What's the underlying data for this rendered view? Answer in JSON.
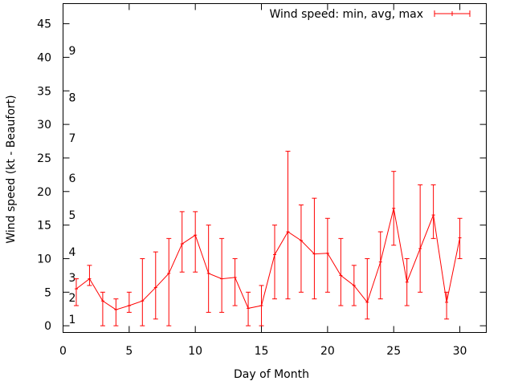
{
  "chart_data": {
    "type": "line",
    "title": "",
    "xlabel": "Day of Month",
    "ylabel": "Wind speed (kt - Beaufort)",
    "xlim": [
      0,
      32
    ],
    "ylim": [
      -1,
      48
    ],
    "x_ticks": [
      0,
      5,
      10,
      15,
      20,
      25,
      30
    ],
    "y_ticks": [
      0,
      5,
      10,
      15,
      20,
      25,
      30,
      35,
      40,
      45
    ],
    "beaufort_labels": [
      {
        "label": "1",
        "value": 1
      },
      {
        "label": "2",
        "value": 4.2
      },
      {
        "label": "3",
        "value": 7.2
      },
      {
        "label": "4",
        "value": 11
      },
      {
        "label": "5",
        "value": 16.5
      },
      {
        "label": "6",
        "value": 22
      },
      {
        "label": "7",
        "value": 28
      },
      {
        "label": "8",
        "value": 34
      },
      {
        "label": "9",
        "value": 41
      }
    ],
    "legend": {
      "position": "top-right",
      "label": "Wind speed: min, avg, max"
    },
    "grid": false,
    "series": [
      {
        "name": "Wind speed: min, avg, max",
        "color": "#ff0000",
        "x": [
          1,
          2,
          3,
          4,
          5,
          6,
          7,
          8,
          9,
          10,
          11,
          12,
          13,
          14,
          15,
          16,
          17,
          18,
          19,
          20,
          21,
          22,
          23,
          24,
          25,
          26,
          27,
          28,
          29,
          30
        ],
        "avg": [
          5.5,
          7,
          3.7,
          2.4,
          3,
          3.7,
          5.7,
          7.8,
          12.2,
          13.5,
          7.8,
          7,
          7.2,
          2.6,
          3,
          10.6,
          14,
          12.7,
          10.7,
          10.8,
          7.5,
          6,
          3.5,
          9.5,
          17.5,
          6.5,
          11.5,
          16.5,
          3.5,
          13.1
        ],
        "min": [
          3,
          6,
          0,
          0,
          2,
          0,
          1,
          0,
          8,
          8,
          2,
          2,
          3,
          0,
          0,
          4,
          4,
          5,
          4,
          5,
          3,
          3,
          1,
          4,
          12,
          3,
          5,
          13,
          1,
          10
        ],
        "max": [
          7,
          9,
          5,
          4,
          5,
          10,
          11,
          13,
          17,
          17,
          15,
          13,
          10,
          5,
          6,
          15,
          26,
          18,
          19,
          16,
          13,
          9,
          10,
          14,
          23,
          10,
          21,
          21,
          5,
          16
        ]
      }
    ]
  }
}
